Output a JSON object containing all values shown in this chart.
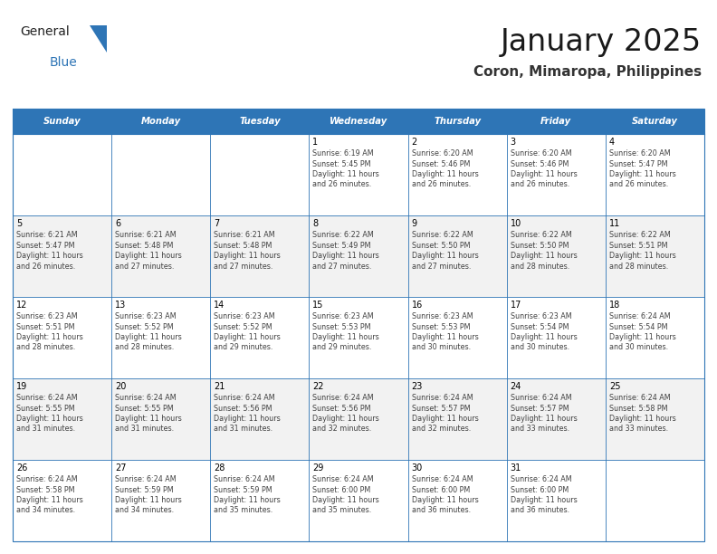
{
  "title": "January 2025",
  "subtitle": "Coron, Mimaropa, Philippines",
  "header_bg": "#2E75B6",
  "header_text_color": "#FFFFFF",
  "day_headers": [
    "Sunday",
    "Monday",
    "Tuesday",
    "Wednesday",
    "Thursday",
    "Friday",
    "Saturday"
  ],
  "row_bg_even": "#F2F2F2",
  "row_bg_odd": "#FFFFFF",
  "cell_border_color": "#2E75B6",
  "cell_text_color": "#404040",
  "calendar_data": [
    [
      {
        "day": "",
        "sunrise": "",
        "sunset": "",
        "daylight_hours": 0,
        "daylight_minutes": 0
      },
      {
        "day": "",
        "sunrise": "",
        "sunset": "",
        "daylight_hours": 0,
        "daylight_minutes": 0
      },
      {
        "day": "",
        "sunrise": "",
        "sunset": "",
        "daylight_hours": 0,
        "daylight_minutes": 0
      },
      {
        "day": "1",
        "sunrise": "6:19 AM",
        "sunset": "5:45 PM",
        "daylight_hours": 11,
        "daylight_minutes": 26
      },
      {
        "day": "2",
        "sunrise": "6:20 AM",
        "sunset": "5:46 PM",
        "daylight_hours": 11,
        "daylight_minutes": 26
      },
      {
        "day": "3",
        "sunrise": "6:20 AM",
        "sunset": "5:46 PM",
        "daylight_hours": 11,
        "daylight_minutes": 26
      },
      {
        "day": "4",
        "sunrise": "6:20 AM",
        "sunset": "5:47 PM",
        "daylight_hours": 11,
        "daylight_minutes": 26
      }
    ],
    [
      {
        "day": "5",
        "sunrise": "6:21 AM",
        "sunset": "5:47 PM",
        "daylight_hours": 11,
        "daylight_minutes": 26
      },
      {
        "day": "6",
        "sunrise": "6:21 AM",
        "sunset": "5:48 PM",
        "daylight_hours": 11,
        "daylight_minutes": 27
      },
      {
        "day": "7",
        "sunrise": "6:21 AM",
        "sunset": "5:48 PM",
        "daylight_hours": 11,
        "daylight_minutes": 27
      },
      {
        "day": "8",
        "sunrise": "6:22 AM",
        "sunset": "5:49 PM",
        "daylight_hours": 11,
        "daylight_minutes": 27
      },
      {
        "day": "9",
        "sunrise": "6:22 AM",
        "sunset": "5:50 PM",
        "daylight_hours": 11,
        "daylight_minutes": 27
      },
      {
        "day": "10",
        "sunrise": "6:22 AM",
        "sunset": "5:50 PM",
        "daylight_hours": 11,
        "daylight_minutes": 28
      },
      {
        "day": "11",
        "sunrise": "6:22 AM",
        "sunset": "5:51 PM",
        "daylight_hours": 11,
        "daylight_minutes": 28
      }
    ],
    [
      {
        "day": "12",
        "sunrise": "6:23 AM",
        "sunset": "5:51 PM",
        "daylight_hours": 11,
        "daylight_minutes": 28
      },
      {
        "day": "13",
        "sunrise": "6:23 AM",
        "sunset": "5:52 PM",
        "daylight_hours": 11,
        "daylight_minutes": 28
      },
      {
        "day": "14",
        "sunrise": "6:23 AM",
        "sunset": "5:52 PM",
        "daylight_hours": 11,
        "daylight_minutes": 29
      },
      {
        "day": "15",
        "sunrise": "6:23 AM",
        "sunset": "5:53 PM",
        "daylight_hours": 11,
        "daylight_minutes": 29
      },
      {
        "day": "16",
        "sunrise": "6:23 AM",
        "sunset": "5:53 PM",
        "daylight_hours": 11,
        "daylight_minutes": 30
      },
      {
        "day": "17",
        "sunrise": "6:23 AM",
        "sunset": "5:54 PM",
        "daylight_hours": 11,
        "daylight_minutes": 30
      },
      {
        "day": "18",
        "sunrise": "6:24 AM",
        "sunset": "5:54 PM",
        "daylight_hours": 11,
        "daylight_minutes": 30
      }
    ],
    [
      {
        "day": "19",
        "sunrise": "6:24 AM",
        "sunset": "5:55 PM",
        "daylight_hours": 11,
        "daylight_minutes": 31
      },
      {
        "day": "20",
        "sunrise": "6:24 AM",
        "sunset": "5:55 PM",
        "daylight_hours": 11,
        "daylight_minutes": 31
      },
      {
        "day": "21",
        "sunrise": "6:24 AM",
        "sunset": "5:56 PM",
        "daylight_hours": 11,
        "daylight_minutes": 31
      },
      {
        "day": "22",
        "sunrise": "6:24 AM",
        "sunset": "5:56 PM",
        "daylight_hours": 11,
        "daylight_minutes": 32
      },
      {
        "day": "23",
        "sunrise": "6:24 AM",
        "sunset": "5:57 PM",
        "daylight_hours": 11,
        "daylight_minutes": 32
      },
      {
        "day": "24",
        "sunrise": "6:24 AM",
        "sunset": "5:57 PM",
        "daylight_hours": 11,
        "daylight_minutes": 33
      },
      {
        "day": "25",
        "sunrise": "6:24 AM",
        "sunset": "5:58 PM",
        "daylight_hours": 11,
        "daylight_minutes": 33
      }
    ],
    [
      {
        "day": "26",
        "sunrise": "6:24 AM",
        "sunset": "5:58 PM",
        "daylight_hours": 11,
        "daylight_minutes": 34
      },
      {
        "day": "27",
        "sunrise": "6:24 AM",
        "sunset": "5:59 PM",
        "daylight_hours": 11,
        "daylight_minutes": 34
      },
      {
        "day": "28",
        "sunrise": "6:24 AM",
        "sunset": "5:59 PM",
        "daylight_hours": 11,
        "daylight_minutes": 35
      },
      {
        "day": "29",
        "sunrise": "6:24 AM",
        "sunset": "6:00 PM",
        "daylight_hours": 11,
        "daylight_minutes": 35
      },
      {
        "day": "30",
        "sunrise": "6:24 AM",
        "sunset": "6:00 PM",
        "daylight_hours": 11,
        "daylight_minutes": 36
      },
      {
        "day": "31",
        "sunrise": "6:24 AM",
        "sunset": "6:00 PM",
        "daylight_hours": 11,
        "daylight_minutes": 36
      },
      {
        "day": "",
        "sunrise": "",
        "sunset": "",
        "daylight_hours": 0,
        "daylight_minutes": 0
      }
    ]
  ],
  "logo_text_general": "General",
  "logo_text_blue": "Blue",
  "logo_triangle_color": "#2E75B6",
  "fig_width": 7.92,
  "fig_height": 6.12,
  "dpi": 100
}
